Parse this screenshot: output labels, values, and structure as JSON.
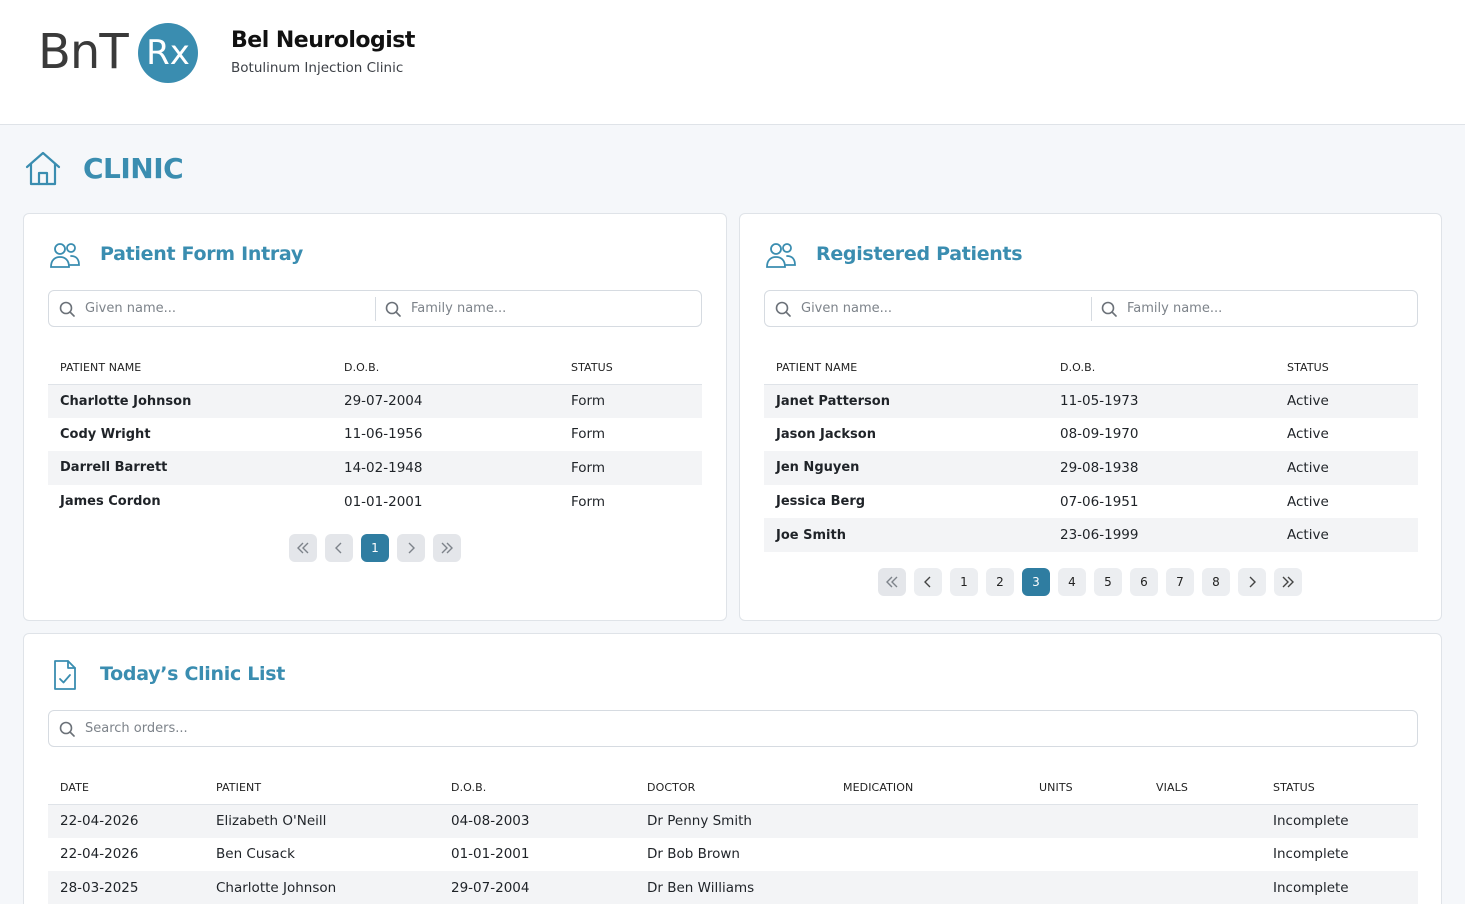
{
  "header": {
    "logo_text": "BnT",
    "logo_badge": "Rx",
    "title": "Bel Neurologist",
    "subtitle": "Botulinum Injection Clinic"
  },
  "page": {
    "title": "CLINIC"
  },
  "colors": {
    "accent": "#3a8db0",
    "active_page": "#2f7da1",
    "stripe": "#f3f4f6"
  },
  "intray": {
    "title": "Patient Form Intray",
    "given_placeholder": "Given name...",
    "family_placeholder": "Family name...",
    "columns": [
      "PATIENT NAME",
      "D.O.B.",
      "STATUS"
    ],
    "rows": [
      [
        "Charlotte Johnson",
        "29-07-2004",
        "Form"
      ],
      [
        "Cody Wright",
        "11-06-1956",
        "Form"
      ],
      [
        "Darrell Barrett",
        "14-02-1948",
        "Form"
      ],
      [
        "James Cordon",
        "01-01-2001",
        "Form"
      ]
    ],
    "pages": [
      "1"
    ],
    "current_page": "1"
  },
  "registered": {
    "title": "Registered Patients",
    "given_placeholder": "Given name...",
    "family_placeholder": "Family name...",
    "columns": [
      "PATIENT NAME",
      "D.O.B.",
      "STATUS"
    ],
    "rows": [
      [
        "Janet Patterson",
        "11-05-1973",
        "Active"
      ],
      [
        "Jason Jackson",
        "08-09-1970",
        "Active"
      ],
      [
        "Jen Nguyen",
        "29-08-1938",
        "Active"
      ],
      [
        "Jessica Berg",
        "07-06-1951",
        "Active"
      ],
      [
        "Joe Smith",
        "23-06-1999",
        "Active"
      ]
    ],
    "pages": [
      "1",
      "2",
      "3",
      "4",
      "5",
      "6",
      "7",
      "8"
    ],
    "current_page": "3"
  },
  "clinic_list": {
    "title": "Today’s Clinic List",
    "search_placeholder": "Search orders...",
    "columns": [
      "DATE",
      "PATIENT",
      "D.O.B.",
      "DOCTOR",
      "MEDICATION",
      "UNITS",
      "VIALS",
      "STATUS"
    ],
    "rows": [
      [
        "22-04-2026",
        "Elizabeth O'Neill",
        "04-08-2003",
        "Dr Penny Smith",
        "",
        "",
        "",
        "Incomplete"
      ],
      [
        "22-04-2026",
        "Ben Cusack",
        "01-01-2001",
        "Dr Bob Brown",
        "",
        "",
        "",
        "Incomplete"
      ],
      [
        "28-03-2025",
        "Charlotte Johnson",
        "29-07-2004",
        "Dr Ben Williams",
        "",
        "",
        "",
        "Incomplete"
      ]
    ]
  },
  "icons": {
    "home": "home-icon",
    "users": "users-icon",
    "document": "document-check-icon",
    "search": "search-icon"
  }
}
